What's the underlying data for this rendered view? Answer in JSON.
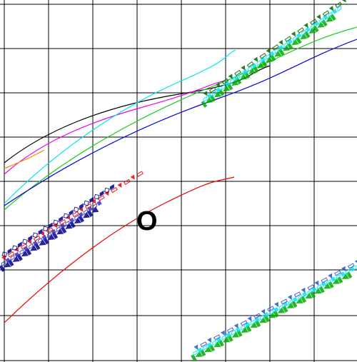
{
  "map": {
    "background": "#ffffff",
    "grid_color": "#000000",
    "grid_columns": 8,
    "grid_rows": 8,
    "marker": {
      "label": "O",
      "color": "#000000"
    },
    "routes": [
      {
        "id": "black",
        "color": "#000000"
      },
      {
        "id": "magenta",
        "color": "#ee00ee"
      },
      {
        "id": "cyan",
        "color": "#00e5ee"
      },
      {
        "id": "green",
        "color": "#22cc22"
      },
      {
        "id": "blue",
        "color": "#0000dd"
      },
      {
        "id": "orange",
        "color": "#ff8800"
      },
      {
        "id": "red",
        "color": "#ee0000"
      }
    ],
    "overlays": [
      {
        "id": "upper-right",
        "colors": [
          "#00aa00",
          "#00e5ee",
          "#006600"
        ]
      },
      {
        "id": "left",
        "colors": [
          "#000088",
          "#3333cc",
          "#ee0000"
        ]
      },
      {
        "id": "lower-right",
        "colors": [
          "#00aa00",
          "#00e5ee",
          "#2255cc"
        ]
      }
    ]
  }
}
